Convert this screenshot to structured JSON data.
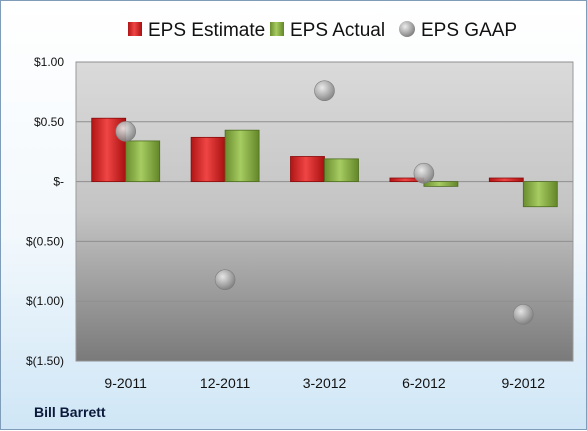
{
  "chart_data": {
    "type": "bar",
    "categories": [
      "9-2011",
      "12-2011",
      "3-2012",
      "6-2012",
      "9-2012"
    ],
    "series": [
      {
        "name": "EPS Estimate",
        "kind": "bar",
        "color": "#e02020",
        "values": [
          0.53,
          0.37,
          0.21,
          0.03,
          0.03
        ]
      },
      {
        "name": "EPS Actual",
        "kind": "bar",
        "color": "#8ab04a",
        "values": [
          0.34,
          0.43,
          0.19,
          -0.04,
          -0.21
        ]
      },
      {
        "name": "EPS GAAP",
        "kind": "scatter",
        "color": "#a9a9a9",
        "values": [
          0.42,
          -0.82,
          0.76,
          0.07,
          -1.11
        ]
      }
    ],
    "ylim": [
      -1.5,
      1.0
    ],
    "yticks": [
      {
        "value": 1.0,
        "label": "$1.00"
      },
      {
        "value": 0.5,
        "label": "$0.50"
      },
      {
        "value": 0.0,
        "label": "$-"
      },
      {
        "value": -0.5,
        "label": "$(0.50)"
      },
      {
        "value": -1.0,
        "label": "$(1.00)"
      },
      {
        "value": -1.5,
        "label": "$(1.50)"
      }
    ],
    "grid": true,
    "legend_position": "top"
  },
  "company_label": "Bill Barrett"
}
